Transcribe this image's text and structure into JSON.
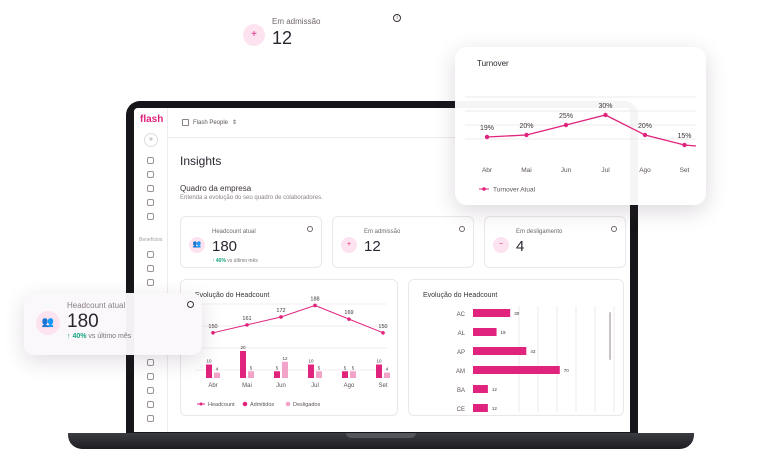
{
  "app": {
    "logo": "flash",
    "collapse_glyph": "»",
    "company": "Flash People",
    "beneficios_label": "Benefícios"
  },
  "page": {
    "title": "Insights",
    "section_title": "Quadro da empresa",
    "section_subtitle": "Entenda a evolução do seu quadro de colaboradores."
  },
  "kpis": {
    "headcount": {
      "label": "Headcount atual",
      "value": "180",
      "trend_value": "40%",
      "trend_text": "vs último mês"
    },
    "admission": {
      "label": "Em admissão",
      "value": "12"
    },
    "dismissal": {
      "label": "Em desligamento",
      "value": "4"
    }
  },
  "colors": {
    "accent": "#e0237d",
    "accent_light": "#f2a4c8",
    "positive": "#14a37f"
  },
  "chart_data": [
    {
      "type": "line",
      "title": "Turnover",
      "categories": [
        "Abr",
        "Mai",
        "Jun",
        "Jul",
        "Ago",
        "Set"
      ],
      "series": [
        {
          "name": "Turnover Atual",
          "values": [
            19,
            20,
            25,
            30,
            20,
            15
          ],
          "labels": [
            "19%",
            "20%",
            "25%",
            "30%",
            "20%",
            "15%"
          ]
        }
      ],
      "ylim": [
        0,
        40
      ],
      "legend": "bottom"
    },
    {
      "type": "bar",
      "title": "Evolução do Headcount",
      "categories": [
        "Abr",
        "Mai",
        "Jun",
        "Jul",
        "Ago",
        "Set"
      ],
      "series": [
        {
          "name": "Headcount",
          "values": [
            150,
            161,
            172,
            188,
            169,
            150
          ]
        },
        {
          "name": "Admitidos",
          "values": [
            10,
            20,
            5,
            10,
            5,
            10
          ]
        },
        {
          "name": "Desligados",
          "values": [
            4,
            5,
            12,
            5,
            5,
            4
          ]
        }
      ],
      "legend": "bottom"
    },
    {
      "type": "bar",
      "orientation": "horizontal",
      "title": "Evolução do Headcount",
      "categories": [
        "AC",
        "AL",
        "AP",
        "AM",
        "BA",
        "CE"
      ],
      "values": [
        30,
        19,
        43,
        70,
        12,
        12
      ]
    }
  ],
  "icons": {
    "person_add": "user-plus-icon",
    "people": "users-icon",
    "person_remove": "user-minus-icon",
    "info": "info-icon",
    "trend_up": "arrow-up-icon"
  }
}
